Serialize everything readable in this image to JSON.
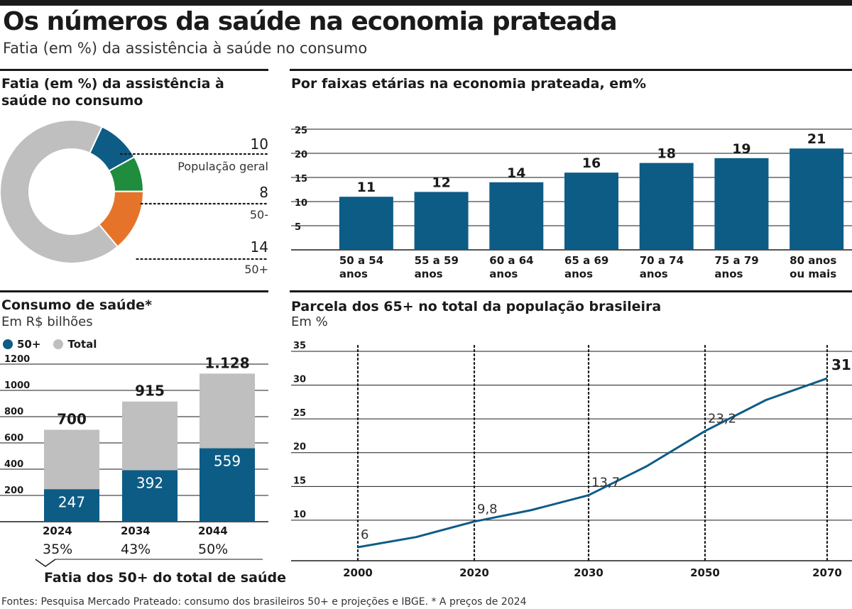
{
  "header": {
    "title": "Os números da saúde na economia prateada",
    "subtitle": "Fatia (em %) da assistência à saúde no consumo"
  },
  "panels": {
    "donut": {
      "title": "Fatia (em %) da assistência à saúde no consumo"
    },
    "age": {
      "title": "Por faixas etárias na economia prateada, em%"
    },
    "consumo": {
      "title": "Consumo de saúde*",
      "subtitle": "Em R$ bilhões",
      "legend_50": "50+",
      "legend_total": "Total",
      "footer_label": "Fatia dos 50+ do total de saúde"
    },
    "pop": {
      "title": "Parcela dos 65+ no total da população brasileira",
      "subtitle": "Em %"
    }
  },
  "colors": {
    "blue": "#0d5c86",
    "gray": "#bfbfbf",
    "green": "#1f8c3e",
    "orange": "#e5742a"
  },
  "source": "Fontes: Pesquisa Mercado Prateado: consumo dos brasileiros 50+ e projeções e IBGE. * A preços de 2024",
  "chart_data": [
    {
      "type": "pie",
      "title": "Fatia (em %) da assistência à saúde no consumo",
      "slices": [
        {
          "label": "População geral",
          "value": 10,
          "color": "#0d5c86"
        },
        {
          "label": "50-",
          "value": 8,
          "color": "#1f8c3e"
        },
        {
          "label": "50+",
          "value": 14,
          "color": "#e5742a"
        }
      ],
      "remainder_color": "#bfbfbf"
    },
    {
      "type": "bar",
      "title": "Por faixas etárias na economia prateada, em%",
      "categories": [
        "50 a 54 anos",
        "55 a 59 anos",
        "60 a 64 anos",
        "65 a 69 anos",
        "70 a 74 anos",
        "75 a 79 anos",
        "80 anos ou mais"
      ],
      "category_lines": [
        [
          "50 a 54",
          "anos"
        ],
        [
          "55 a 59",
          "anos"
        ],
        [
          "60 a 64",
          "anos"
        ],
        [
          "65 a 69",
          "anos"
        ],
        [
          "70 a 74",
          "anos"
        ],
        [
          "75 a 79",
          "anos"
        ],
        [
          "80 anos",
          "ou mais"
        ]
      ],
      "values": [
        11,
        12,
        14,
        16,
        18,
        19,
        21
      ],
      "yticks": [
        5,
        10,
        15,
        20,
        25
      ],
      "ylim": [
        0,
        25
      ],
      "grid": true
    },
    {
      "type": "bar",
      "stacked": true,
      "title": "Consumo de saúde*",
      "ylabel": "Em R$ bilhões",
      "categories": [
        "2024",
        "2034",
        "2044"
      ],
      "series": [
        {
          "name": "50+",
          "values": [
            247,
            392,
            559
          ]
        },
        {
          "name": "Total",
          "values": [
            700,
            915,
            1128
          ]
        }
      ],
      "total_labels": [
        "700",
        "915",
        "1.128"
      ],
      "share_labels": [
        "35%",
        "43%",
        "50%"
      ],
      "yticks": [
        200,
        400,
        600,
        800,
        1000,
        1200
      ],
      "ylim": [
        0,
        1200
      ],
      "grid": true
    },
    {
      "type": "line",
      "title": "Parcela dos 65+ no total da população brasileira",
      "ylabel": "Em %",
      "x": [
        2000,
        2010,
        2020,
        2025,
        2030,
        2040,
        2050,
        2060,
        2070
      ],
      "y": [
        6,
        7.5,
        9.8,
        11.5,
        13.7,
        18,
        23.2,
        27.8,
        31
      ],
      "point_labels": [
        {
          "x": 2000,
          "y": 6,
          "text": "6"
        },
        {
          "x": 2020,
          "y": 9.8,
          "text": "9,8"
        },
        {
          "x": 2030,
          "y": 13.7,
          "text": "13,7"
        },
        {
          "x": 2050,
          "y": 23.2,
          "text": "23,2"
        },
        {
          "x": 2070,
          "y": 31,
          "text": "31"
        }
      ],
      "xticks": [
        2000,
        2020,
        2030,
        2050,
        2070
      ],
      "yticks": [
        10,
        15,
        20,
        25,
        30,
        35
      ],
      "ylim": [
        4,
        35
      ],
      "grid": true
    }
  ]
}
